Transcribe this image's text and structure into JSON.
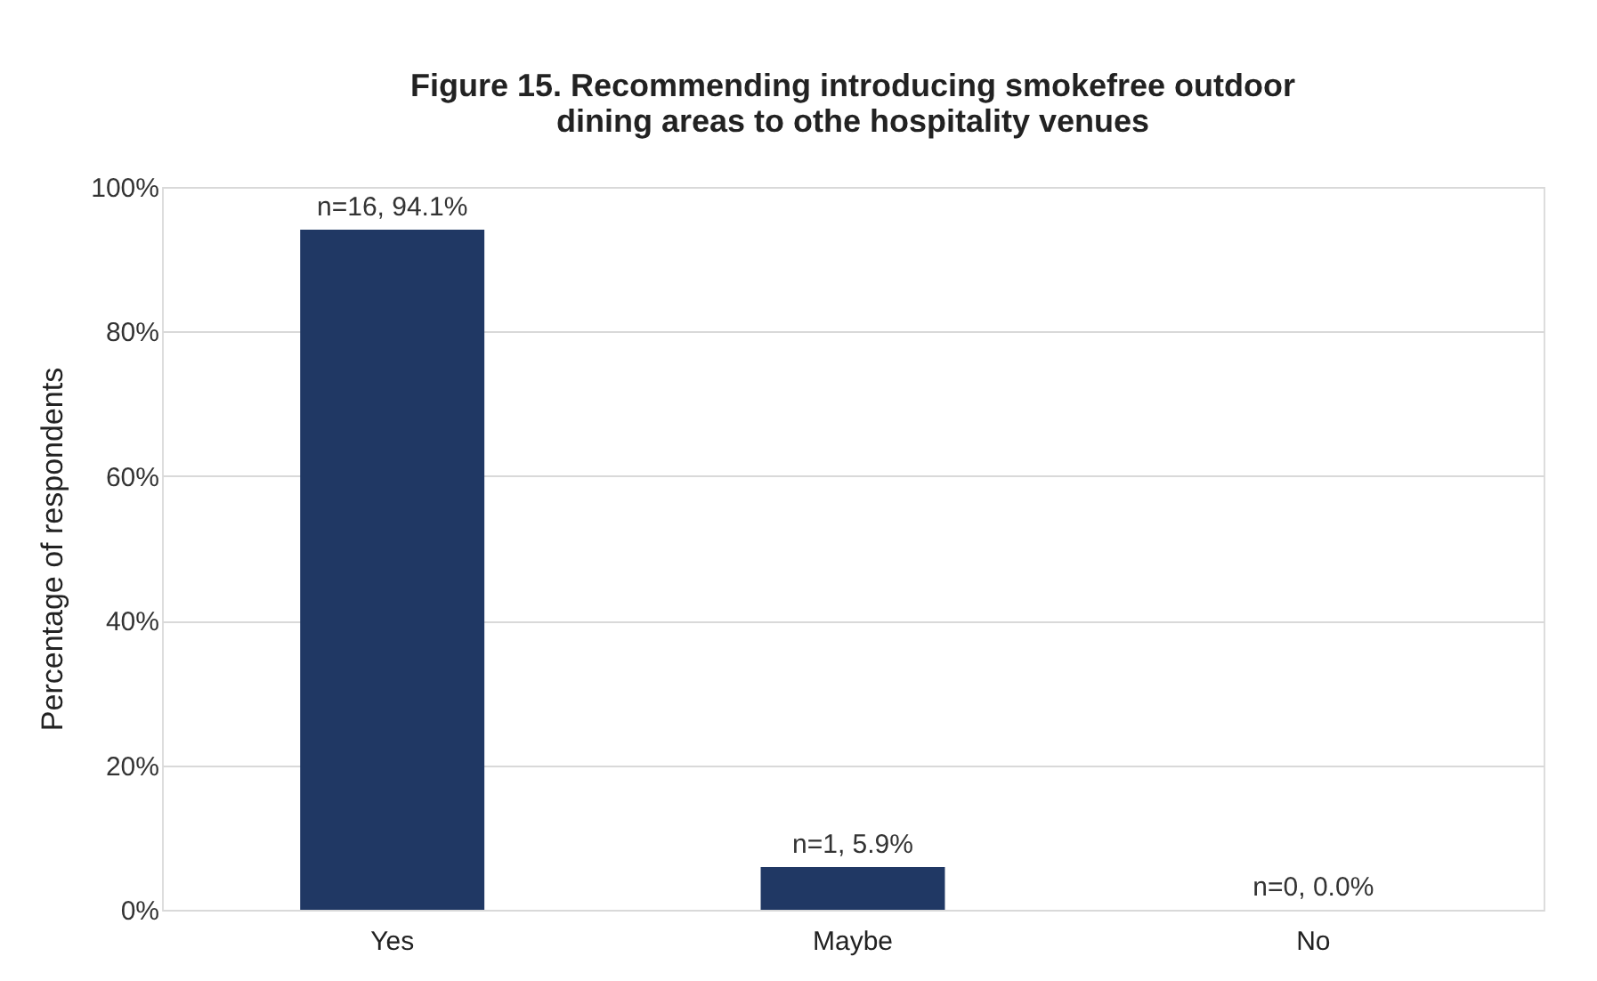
{
  "chart_data": {
    "type": "bar",
    "title": [
      "Figure 15. Recommending introducing smokefree outdoor",
      "dining areas to othe hospitality venues"
    ],
    "ylabel": "Percentage of respondents",
    "categories": [
      "Yes",
      "Maybe",
      "No"
    ],
    "values": [
      94.1,
      5.9,
      0.0
    ],
    "value_labels": [
      "n=16, 94.1%",
      "n=1, 5.9%",
      "n=0, 0.0%"
    ],
    "color": "#203864",
    "ylim": [
      0,
      100
    ],
    "yticks": [
      {
        "value": 0,
        "label": "0%"
      },
      {
        "value": 20,
        "label": "20%"
      },
      {
        "value": 40,
        "label": "40%"
      },
      {
        "value": 60,
        "label": "60%"
      },
      {
        "value": 80,
        "label": "80%"
      },
      {
        "value": 100,
        "label": "100%"
      }
    ],
    "grid": "y"
  }
}
